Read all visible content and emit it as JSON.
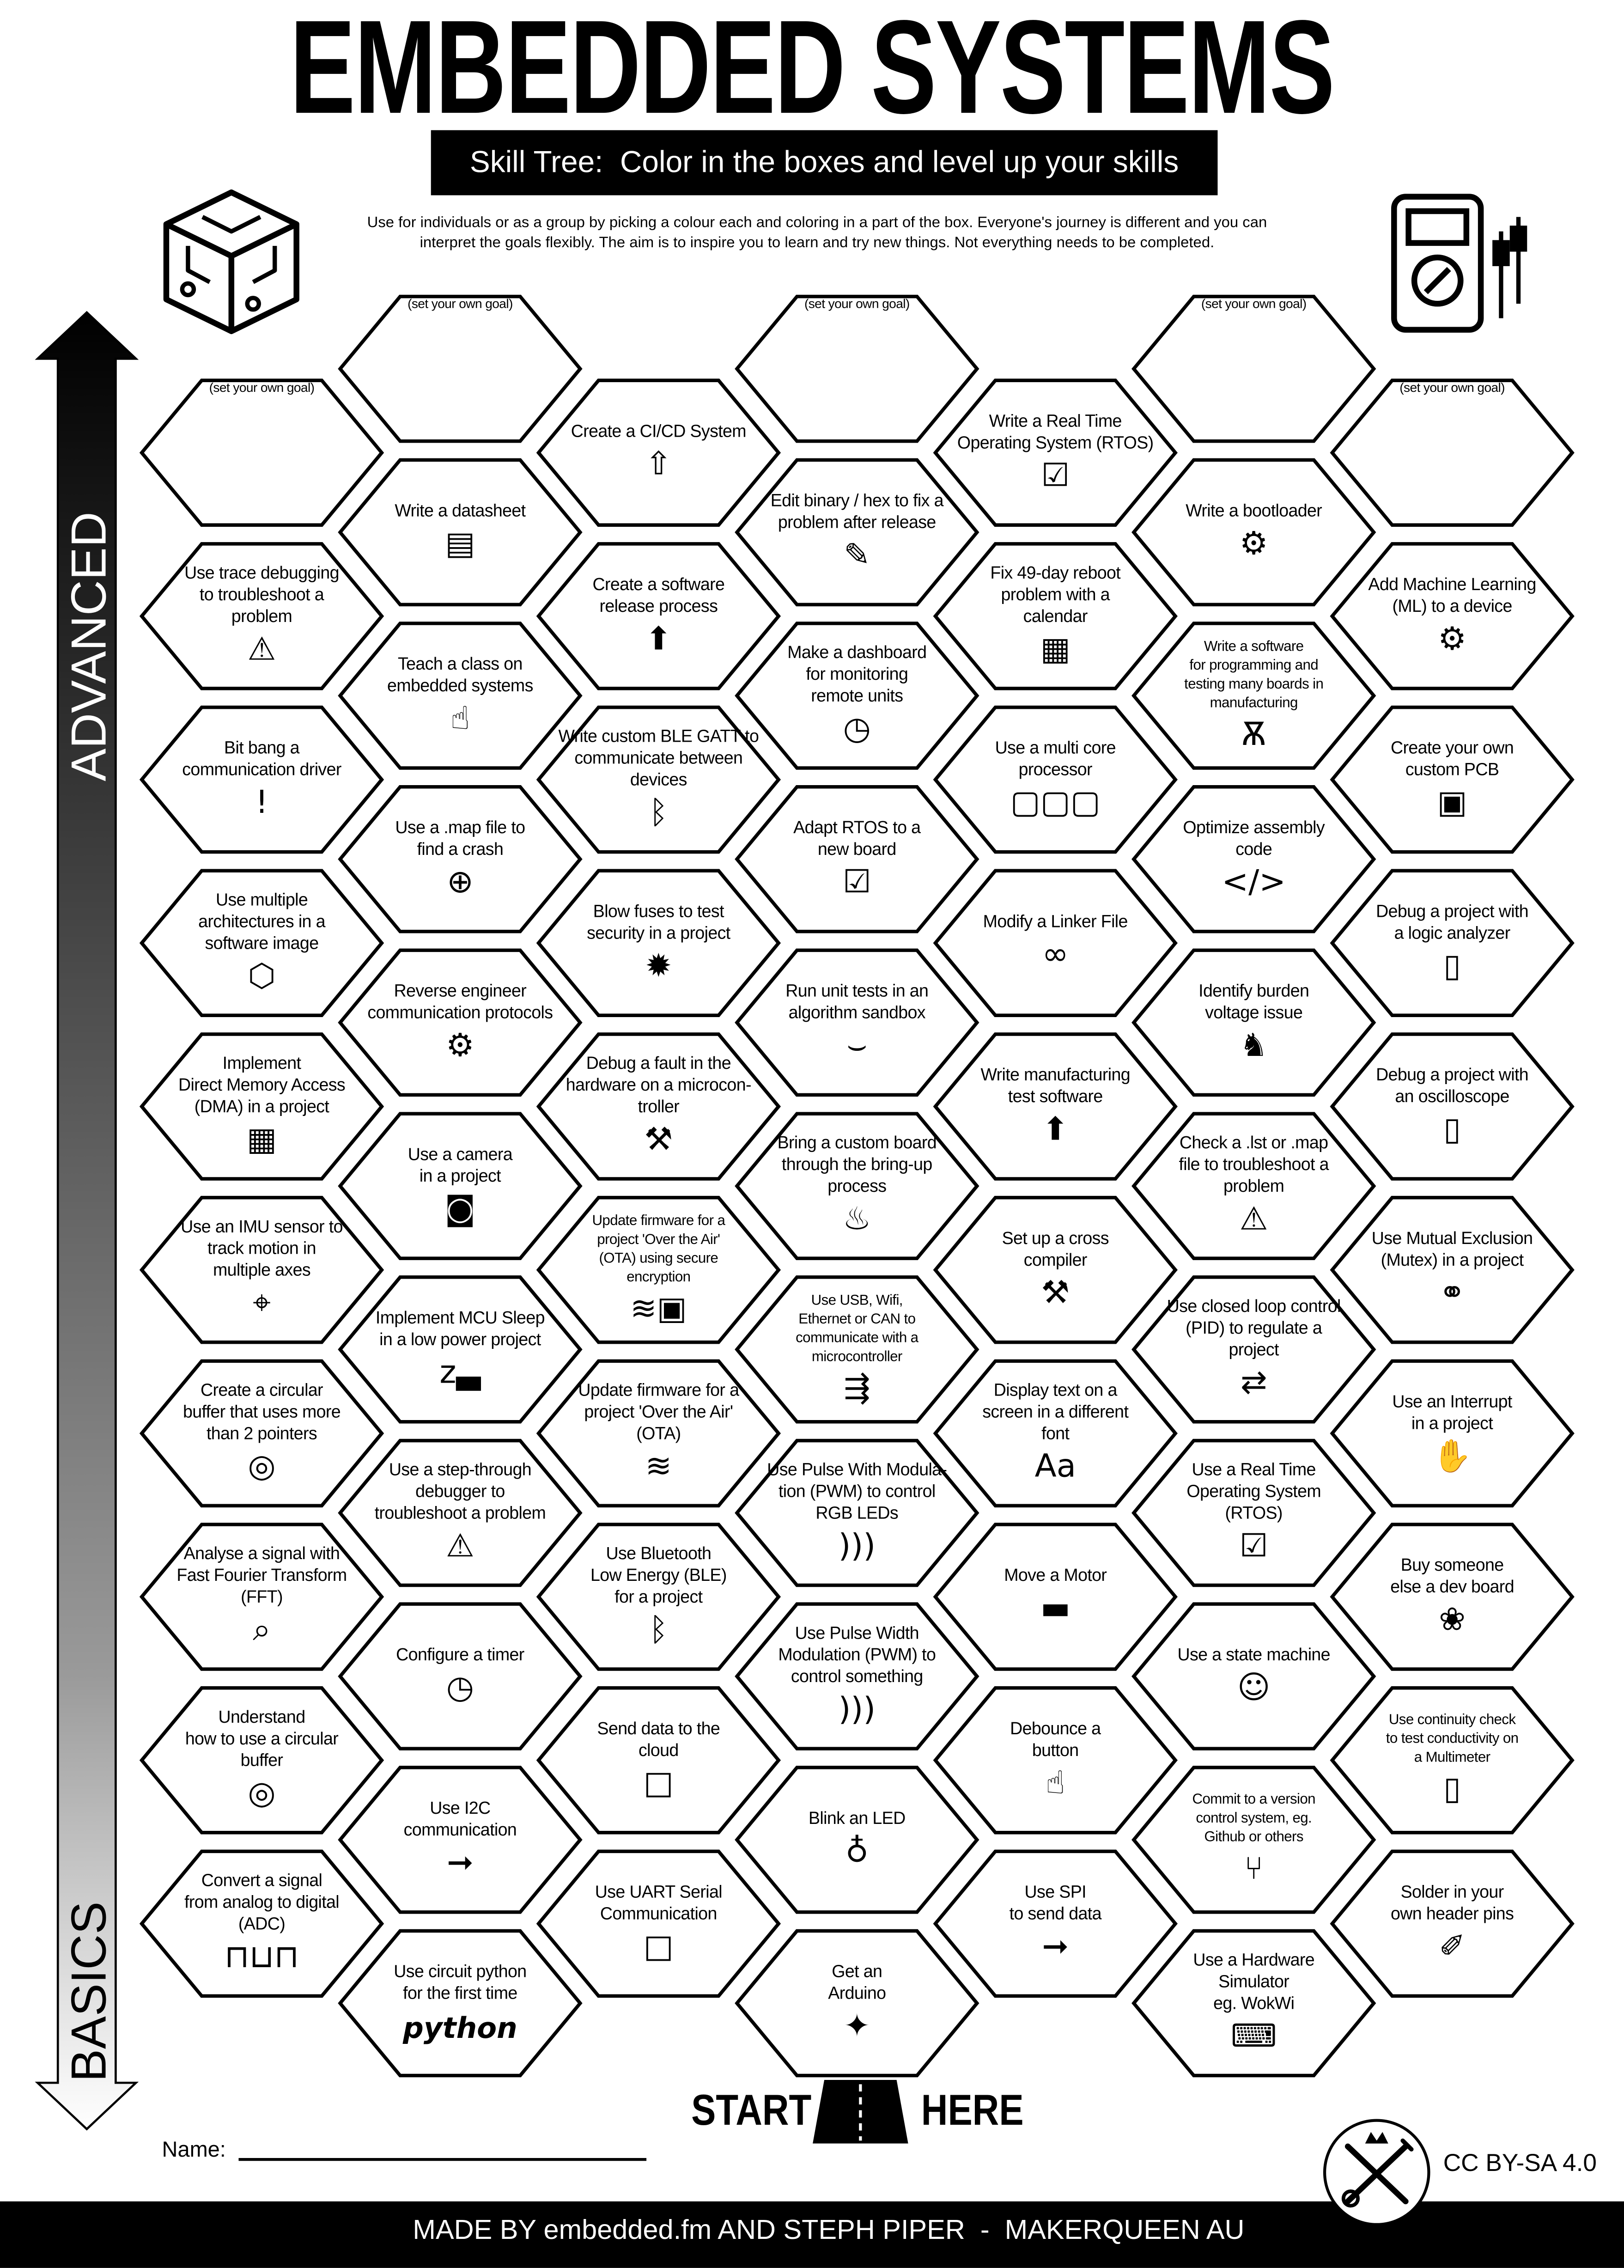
{
  "header": {
    "title": "EMBEDDED SYSTEMS",
    "subtitle": "Skill Tree:  Color in the boxes and level up your skills",
    "intro_line1": "Use for individuals or as a group by picking a colour each and coloring in a part of the box.  Everyone's journey is different and you can",
    "intro_line2": "interpret the goals flexibly.  The aim is to inspire you to learn and try new things. Not everything needs to be completed."
  },
  "axis": {
    "top_label": "ADVANCED",
    "bottom_label": "BASICS"
  },
  "colors": {
    "ink": "#000000",
    "paper": "#ffffff"
  },
  "columns": [
    {
      "items": [
        {
          "text": "(set your own goal)",
          "icon": "goal"
        },
        {
          "text": "Use trace debugging\nto troubleshoot a\nproblem",
          "icon": "monitor-alert"
        },
        {
          "text": "Bit bang a\ncommunication driver",
          "icon": "exclamation"
        },
        {
          "text": "Use multiple\narchitectures in a\nsoftware image",
          "icon": "cube-network"
        },
        {
          "text": "Implement\nDirect Memory Access\n(DMA) in a project",
          "icon": "chip-cube"
        },
        {
          "text": "Use an IMU sensor to\ntrack motion in\nmultiple axes",
          "icon": "axes-cube"
        },
        {
          "text": "Create a circular\nbuffer that uses more\nthan 2 pointers",
          "icon": "ring"
        },
        {
          "text": "Analyse a signal with\nFast Fourier Transform\n(FFT)",
          "icon": "magnifier-wave"
        },
        {
          "text": "Understand\nhow to use a circular\nbuffer",
          "icon": "ring"
        },
        {
          "text": "Convert a signal\nfrom analog to digital\n(ADC)",
          "icon": "digital-wave"
        }
      ]
    },
    {
      "items": [
        {
          "text": "(set your own goal)",
          "icon": "goal"
        },
        {
          "text": "Write a datasheet",
          "icon": "document"
        },
        {
          "text": "Teach a class on\nembedded systems",
          "icon": "teacher"
        },
        {
          "text": "Use a .map file to\nfind a crash",
          "icon": "globe"
        },
        {
          "text": "Reverse engineer\ncommunication protocols",
          "icon": "cycle-gear"
        },
        {
          "text": "Use a camera\nin a project",
          "icon": "camera"
        },
        {
          "text": "Implement MCU Sleep\nin a low power project",
          "icon": "sleep-bed"
        },
        {
          "text": "Use a step-through\ndebugger to\ntroubleshoot a problem",
          "icon": "monitor-bug"
        },
        {
          "text": "Configure a timer",
          "icon": "stopwatch"
        },
        {
          "text": "Use I2C\ncommunication",
          "icon": "arrow-dots"
        },
        {
          "text": "Use circuit python\nfor the first time",
          "icon": "circuitpython-logo",
          "logo_text": "python"
        }
      ]
    },
    {
      "items": [
        {
          "text": "Create a CI/CD System",
          "icon": "rocket-box"
        },
        {
          "text": "Create a software\nrelease process",
          "icon": "release-box"
        },
        {
          "text": "Write custom BLE GATT to\ncommunicate between\ndevices",
          "icon": "bluetooth"
        },
        {
          "text": "Blow fuses to test\nsecurity in a project",
          "icon": "explosion"
        },
        {
          "text": "Debug a fault in the\nhardware on a microcon-\ntroller",
          "icon": "tools"
        },
        {
          "text": "Update firmware for a\nproject 'Over the Air'\n(OTA) using secure\nencryption",
          "icon": "wifi-lock"
        },
        {
          "text": "Update firmware for a\nproject 'Over the Air'\n(OTA)",
          "icon": "wifi"
        },
        {
          "text": "Use Bluetooth\nLow Energy (BLE)\nfor a project",
          "icon": "bluetooth"
        },
        {
          "text": "Send data to the\ncloud",
          "icon": "cloud"
        },
        {
          "text": "Use UART Serial\nCommunication",
          "icon": "drop"
        }
      ]
    },
    {
      "items": [
        {
          "text": "(set your own goal)",
          "icon": "goal"
        },
        {
          "text": "Edit binary / hex to fix a\nproblem after release",
          "icon": "pencil"
        },
        {
          "text": "Make a dashboard\nfor monitoring\nremote units",
          "icon": "gauge"
        },
        {
          "text": "Adapt RTOS to a\nnew board",
          "icon": "monitor-check"
        },
        {
          "text": "Run unit tests in an\nalgorithm sandbox",
          "icon": "sandbox"
        },
        {
          "text": "Bring a custom board\nthrough the bring-up\nprocess",
          "icon": "cake"
        },
        {
          "text": "Use USB, Wifi,\nEthernet or CAN to\ncommunicate with a\nmicrocontroller",
          "icon": "usb"
        },
        {
          "text": "Use Pulse With Modula-\ntion (PWM) to control\nRGB LEDs",
          "icon": "pulse-wave"
        },
        {
          "text": "Use Pulse Width\nModulation (PWM) to\ncontrol something",
          "icon": "pulse-wave"
        },
        {
          "text": "Blink an LED",
          "icon": "led"
        },
        {
          "text": "Get an\nArduino",
          "icon": "party-popper"
        }
      ]
    },
    {
      "items": [
        {
          "text": "Write a Real Time\nOperating System (RTOS)",
          "icon": "monitor-check"
        },
        {
          "text": "Fix 49-day reboot\nproblem with a\ncalendar",
          "icon": "calendar"
        },
        {
          "text": "Use a multi core\nprocessor",
          "icon": "cubes"
        },
        {
          "text": "Modify a Linker File",
          "icon": "link"
        },
        {
          "text": "Write manufacturing\ntest software",
          "icon": "release-box"
        },
        {
          "text": "Set up a cross\ncompiler",
          "icon": "tools"
        },
        {
          "text": "Display text on a\nscreen in a different\nfont",
          "icon": "font-aa"
        },
        {
          "text": "Move a Motor",
          "icon": "motor-button"
        },
        {
          "text": "Debounce a\nbutton",
          "icon": "hand-press"
        },
        {
          "text": "Use SPI\nto send data",
          "icon": "arrow-dots"
        }
      ]
    },
    {
      "items": [
        {
          "text": "(set your own goal)",
          "icon": "goal"
        },
        {
          "text": "Write a bootloader",
          "icon": "forklift"
        },
        {
          "text": "Write a software\nfor programming and\ntesting many boards in\nmanufacturing",
          "icon": "octopus"
        },
        {
          "text": "Optimize assembly\ncode",
          "icon": "code"
        },
        {
          "text": "Identify burden\nvoltage issue",
          "icon": "donkey"
        },
        {
          "text": "Check a .lst or .map\nfile to troubleshoot a\nproblem",
          "icon": "monitor-alert"
        },
        {
          "text": "Use closed loop control\n(PID) to regulate a\nproject",
          "icon": "loop-arrows"
        },
        {
          "text": "Use a Real Time\nOperating System\n(RTOS)",
          "icon": "monitor-check"
        },
        {
          "text": "Use a state machine",
          "icon": "robot"
        },
        {
          "text": "Commit to a version\ncontrol system, eg.\nGithub or others",
          "icon": "git-branch"
        },
        {
          "text": "Use a Hardware\nSimulator\neg. WokWi",
          "icon": "laptop-cube"
        }
      ]
    },
    {
      "items": [
        {
          "text": "(set your own goal)",
          "icon": "goal"
        },
        {
          "text": "Add Machine Learning\n(ML) to a device",
          "icon": "head-gear"
        },
        {
          "text": "Create your own\ncustom PCB",
          "icon": "pcb"
        },
        {
          "text": "Debug a project with\na logic analyzer",
          "icon": "multimeter"
        },
        {
          "text": "Debug a project with\nan oscilloscope",
          "icon": "multimeter"
        },
        {
          "text": "Use Mutual Exclusion\n(Mutex) in a project",
          "icon": "handshake"
        },
        {
          "text": "Use an Interrupt\nin a project",
          "icon": "hand-stop"
        },
        {
          "text": "Buy someone\nelse a dev board",
          "icon": "gift-bow"
        },
        {
          "text": "Use continuity check\nto test conductivity on\na Multimeter",
          "icon": "multimeter"
        },
        {
          "text": "Solder in your\nown header pins",
          "icon": "soldering-iron"
        }
      ]
    }
  ],
  "footer": {
    "start": "START",
    "here": "HERE",
    "name_label": "Name:",
    "license": "CC BY-SA 4.0",
    "credits": "MADE BY embedded.fm AND STEPH PIPER  -  MAKERQUEEN AU"
  }
}
